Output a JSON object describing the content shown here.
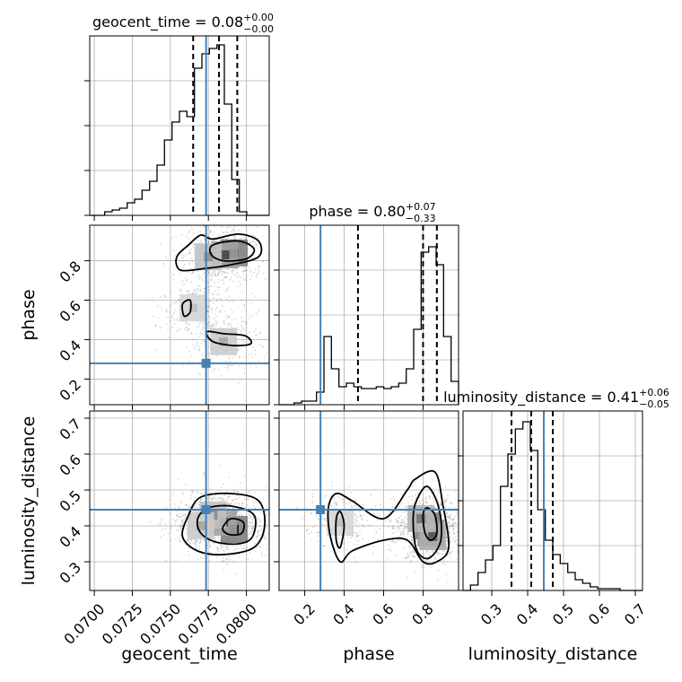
{
  "chart_data": {
    "type": "corner",
    "truth_color": "#4682b4",
    "parameters": [
      {
        "name": "geocent_time",
        "axis_label": "geocent_time",
        "title_main": "geocent_time = 0.08",
        "title_sup": "+0.00",
        "title_sub": "−0.00",
        "range": [
          0.0697,
          0.0815
        ],
        "ticks": [
          0.07,
          0.0725,
          0.075,
          0.0775,
          0.08
        ],
        "tick_labels": [
          "0.0700",
          "0.0725",
          "0.0750",
          "0.0775",
          "0.0800"
        ],
        "truth": 0.07735,
        "quantiles": [
          0.0765,
          0.0782,
          0.0794
        ],
        "hist": [
          0,
          0,
          0.02,
          0.03,
          0.04,
          0.07,
          0.09,
          0.14,
          0.19,
          0.28,
          0.42,
          0.52,
          0.58,
          0.55,
          0.82,
          0.9,
          0.93,
          0.95,
          0.62,
          0.2,
          0.02,
          0,
          0,
          0
        ]
      },
      {
        "name": "phase",
        "axis_label": "phase",
        "title_main": "phase = 0.80",
        "title_sup": "+0.07",
        "title_sub": "−0.33",
        "range": [
          0.07,
          0.98
        ],
        "ticks": [
          0.2,
          0.4,
          0.6,
          0.8
        ],
        "tick_labels": [
          "0.2",
          "0.4",
          "0.6",
          "0.8"
        ],
        "truth": 0.28,
        "quantiles": [
          0.47,
          0.8,
          0.87
        ],
        "hist": [
          0,
          0,
          0.01,
          0.02,
          0.02,
          0.07,
          0.38,
          0.2,
          0.1,
          0.12,
          0.1,
          0.09,
          0.09,
          0.1,
          0.09,
          0.1,
          0.12,
          0.2,
          0.42,
          0.85,
          0.88,
          0.78,
          0.38,
          0.13
        ]
      },
      {
        "name": "luminosity_distance",
        "axis_label": "luminosity_distance",
        "title_main": "luminosity_distance = 0.41",
        "title_sup": "+0.06",
        "title_sub": "−0.05",
        "range": [
          0.22,
          0.72
        ],
        "ticks": [
          0.3,
          0.4,
          0.5,
          0.6,
          0.7
        ],
        "tick_labels": [
          "0.3",
          "0.4",
          "0.5",
          "0.6",
          "0.7"
        ],
        "truth": 0.445,
        "quantiles": [
          0.355,
          0.41,
          0.47
        ],
        "hist": [
          0,
          0.03,
          0.1,
          0.17,
          0.25,
          0.58,
          0.76,
          0.9,
          0.94,
          0.78,
          0.45,
          0.28,
          0.2,
          0.15,
          0.1,
          0.06,
          0.04,
          0.02,
          0.01,
          0.01,
          0.01,
          0,
          0,
          0
        ]
      }
    ],
    "pairs": [
      {
        "x": "geocent_time",
        "y": "phase",
        "inner_contours": [
          [
            [
              0.0778,
              0.88
            ],
            [
              0.0795,
              0.9
            ],
            [
              0.0805,
              0.86
            ],
            [
              0.08,
              0.81
            ],
            [
              0.0785,
              0.8
            ],
            [
              0.0777,
              0.83
            ]
          ]
        ],
        "outer_contours": [
          [
            [
              0.0755,
              0.83
            ],
            [
              0.0762,
              0.88
            ],
            [
              0.077,
              0.93
            ],
            [
              0.0778,
              0.91
            ],
            [
              0.0795,
              0.935
            ],
            [
              0.0808,
              0.9
            ],
            [
              0.0808,
              0.82
            ],
            [
              0.079,
              0.78
            ],
            [
              0.0772,
              0.76
            ],
            [
              0.0758,
              0.75
            ],
            [
              0.0754,
              0.78
            ]
          ],
          [
            [
              0.0774,
              0.44
            ],
            [
              0.0778,
              0.39
            ],
            [
              0.0792,
              0.37
            ],
            [
              0.0803,
              0.38
            ],
            [
              0.0799,
              0.42
            ],
            [
              0.0785,
              0.43
            ]
          ],
          [
            [
              0.0758,
              0.58
            ],
            [
              0.0763,
              0.6
            ],
            [
              0.0763,
              0.54
            ],
            [
              0.0759,
              0.52
            ]
          ]
        ],
        "density_peaks": [
          [
            0.0792,
            0.84,
            1.0
          ],
          [
            0.0786,
            0.83,
            0.7
          ],
          [
            0.0775,
            0.82,
            0.4
          ],
          [
            0.0785,
            0.39,
            0.3
          ],
          [
            0.0765,
            0.56,
            0.2
          ]
        ]
      },
      {
        "x": "geocent_time",
        "y": "luminosity_distance",
        "inner_contours": [
          [
            [
              0.0785,
              0.4
            ],
            [
              0.079,
              0.42
            ],
            [
              0.0798,
              0.41
            ],
            [
              0.0797,
              0.38
            ],
            [
              0.079,
              0.375
            ],
            [
              0.0785,
              0.385
            ]
          ]
        ],
        "outer_contours": [
          [
            [
              0.0768,
              0.42
            ],
            [
              0.0775,
              0.45
            ],
            [
              0.079,
              0.455
            ],
            [
              0.0805,
              0.43
            ],
            [
              0.0804,
              0.37
            ],
            [
              0.0795,
              0.35
            ],
            [
              0.078,
              0.355
            ],
            [
              0.077,
              0.38
            ]
          ],
          [
            [
              0.0762,
              0.43
            ],
            [
              0.077,
              0.48
            ],
            [
              0.079,
              0.49
            ],
            [
              0.0808,
              0.47
            ],
            [
              0.0812,
              0.4
            ],
            [
              0.0805,
              0.34
            ],
            [
              0.0785,
              0.32
            ],
            [
              0.0768,
              0.33
            ],
            [
              0.0758,
              0.37
            ]
          ]
        ],
        "density_peaks": [
          [
            0.0792,
            0.39,
            1.0
          ],
          [
            0.0785,
            0.41,
            0.7
          ],
          [
            0.0778,
            0.43,
            0.4
          ],
          [
            0.077,
            0.4,
            0.3
          ]
        ]
      },
      {
        "x": "phase",
        "y": "luminosity_distance",
        "inner_contours": [
          [
            [
              0.8,
              0.43
            ],
            [
              0.82,
              0.45
            ],
            [
              0.86,
              0.43
            ],
            [
              0.87,
              0.38
            ],
            [
              0.84,
              0.36
            ],
            [
              0.81,
              0.38
            ]
          ],
          [
            [
              0.36,
              0.42
            ],
            [
              0.38,
              0.44
            ],
            [
              0.4,
              0.4
            ],
            [
              0.38,
              0.34
            ],
            [
              0.36,
              0.36
            ]
          ]
        ],
        "outer_contours": [
          [
            [
              0.32,
              0.45
            ],
            [
              0.36,
              0.49
            ],
            [
              0.44,
              0.47
            ],
            [
              0.6,
              0.42
            ],
            [
              0.72,
              0.5
            ],
            [
              0.76,
              0.53
            ],
            [
              0.86,
              0.55
            ],
            [
              0.9,
              0.46
            ],
            [
              0.93,
              0.34
            ],
            [
              0.87,
              0.3
            ],
            [
              0.8,
              0.3
            ],
            [
              0.72,
              0.36
            ],
            [
              0.6,
              0.36
            ],
            [
              0.44,
              0.33
            ],
            [
              0.38,
              0.3
            ],
            [
              0.33,
              0.37
            ]
          ],
          [
            [
              0.76,
              0.46
            ],
            [
              0.82,
              0.51
            ],
            [
              0.88,
              0.45
            ],
            [
              0.89,
              0.36
            ],
            [
              0.83,
              0.31
            ],
            [
              0.77,
              0.33
            ],
            [
              0.75,
              0.4
            ]
          ]
        ],
        "density_peaks": [
          [
            0.82,
            0.4,
            1.0
          ],
          [
            0.84,
            0.38,
            0.8
          ],
          [
            0.85,
            0.37,
            0.6
          ],
          [
            0.79,
            0.42,
            0.5
          ],
          [
            0.38,
            0.41,
            0.2
          ]
        ]
      }
    ]
  }
}
